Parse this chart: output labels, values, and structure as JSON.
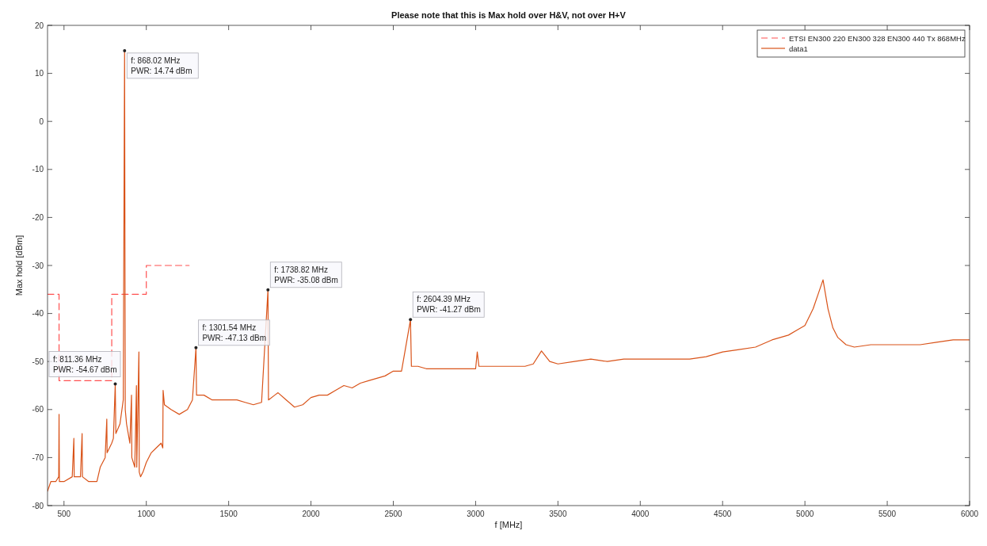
{
  "chart_data": {
    "type": "line",
    "title": "Please note that this is Max hold over H&V, not over H+V",
    "xlabel": "f [MHz]",
    "ylabel": "Max hold [dBm]",
    "xlim": [
      400,
      6000
    ],
    "xticks": [
      500,
      1000,
      1500,
      2000,
      2500,
      3000,
      3500,
      4000,
      4500,
      5000,
      5500,
      6000
    ],
    "ylim": [
      -80,
      20
    ],
    "yticks": [
      -80,
      -70,
      -60,
      -50,
      -40,
      -30,
      -20,
      -10,
      0,
      10,
      20
    ],
    "grid": false,
    "legend": "top right",
    "series": [
      {
        "name": "ETSI EN300 220 EN300 328 EN300 440 Tx 868MHz",
        "color": "#ff5050",
        "line_style": "dashed",
        "x": [
          400,
          470,
          470,
          790,
          790,
          1000,
          1000,
          1260
        ],
        "values": [
          -36,
          -36,
          -54,
          -54,
          -36,
          -36,
          -30,
          -30
        ]
      },
      {
        "name": "data1",
        "color": "#d95319",
        "line_style": "solid",
        "x": [
          400,
          420,
          450,
          468,
          470,
          472,
          500,
          550,
          560,
          562,
          600,
          610,
          612,
          650,
          700,
          720,
          750,
          760,
          762,
          790,
          800,
          811.36,
          815,
          840,
          860,
          868.02,
          872,
          880,
          900,
          910,
          912,
          930,
          940,
          942,
          955,
          957,
          965,
          980,
          1000,
          1030,
          1060,
          1090,
          1100,
          1102,
          1110,
          1150,
          1200,
          1250,
          1280,
          1301.54,
          1305,
          1350,
          1400,
          1450,
          1500,
          1550,
          1600,
          1650,
          1700,
          1738.82,
          1742,
          1780,
          1800,
          1850,
          1900,
          1950,
          2000,
          2050,
          2100,
          2150,
          2200,
          2250,
          2300,
          2350,
          2400,
          2450,
          2500,
          2550,
          2604.39,
          2610,
          2650,
          2700,
          2750,
          2800,
          2850,
          2900,
          2950,
          3000,
          3010,
          3020,
          3100,
          3200,
          3300,
          3350,
          3400,
          3450,
          3500,
          3600,
          3700,
          3800,
          3900,
          4000,
          4100,
          4200,
          4300,
          4400,
          4500,
          4600,
          4700,
          4800,
          4900,
          4950,
          5000,
          5050,
          5080,
          5110,
          5140,
          5170,
          5200,
          5250,
          5300,
          5400,
          5500,
          5600,
          5700,
          5800,
          5900,
          6000
        ],
        "values": [
          -77,
          -75,
          -75,
          -74,
          -61,
          -75,
          -75,
          -74,
          -66,
          -74,
          -74,
          -65,
          -74,
          -75,
          -75,
          -72,
          -70,
          -62,
          -69,
          -67,
          -66,
          -54.67,
          -65,
          -63,
          -58,
          14.74,
          -60,
          -63,
          -67,
          -57,
          -70,
          -72,
          -55,
          -72,
          -48,
          -73,
          -74,
          -73,
          -71,
          -69,
          -68,
          -67,
          -68,
          -56,
          -59,
          -60,
          -61,
          -60,
          -58,
          -47.13,
          -57,
          -57,
          -58,
          -58,
          -58,
          -58,
          -58.5,
          -59,
          -58.5,
          -35.08,
          -58,
          -57,
          -56.5,
          -58,
          -59.5,
          -59,
          -57.5,
          -57,
          -57,
          -56,
          -55,
          -55.5,
          -54.5,
          -54,
          -53.5,
          -53,
          -52,
          -52,
          -41.27,
          -51,
          -51,
          -51.5,
          -51.5,
          -51.5,
          -51.5,
          -51.5,
          -51.5,
          -51.5,
          -48,
          -51,
          -51,
          -51,
          -51,
          -50.5,
          -47.8,
          -50,
          -50.5,
          -50,
          -49.5,
          -50,
          -49.5,
          -49.5,
          -49.5,
          -49.5,
          -49.5,
          -49,
          -48,
          -47.5,
          -47,
          -45.5,
          -44.5,
          -43.5,
          -42.5,
          -39,
          -36,
          -33,
          -39,
          -43,
          -45,
          -46.5,
          -47,
          -46.5,
          -46.5,
          -46.5,
          -46.5,
          -46,
          -45.5,
          -45.5
        ]
      }
    ],
    "annotations": [
      {
        "text": "f: 868.02 MHz\nPWR: 14.74 dBm",
        "x": 868.02,
        "y": 14.74
      },
      {
        "text": "f: 811.36 MHz\nPWR: -54.67 dBm",
        "x": 811.36,
        "y": -54.67
      },
      {
        "text": "f: 1301.54 MHz\nPWR: -47.13 dBm",
        "x": 1301.54,
        "y": -47.13
      },
      {
        "text": "f: 1738.82 MHz\nPWR: -35.08 dBm",
        "x": 1738.82,
        "y": -35.08
      },
      {
        "text": "f: 2604.39 MHz\nPWR: -41.27 dBm",
        "x": 2604.39,
        "y": -41.27
      }
    ]
  }
}
